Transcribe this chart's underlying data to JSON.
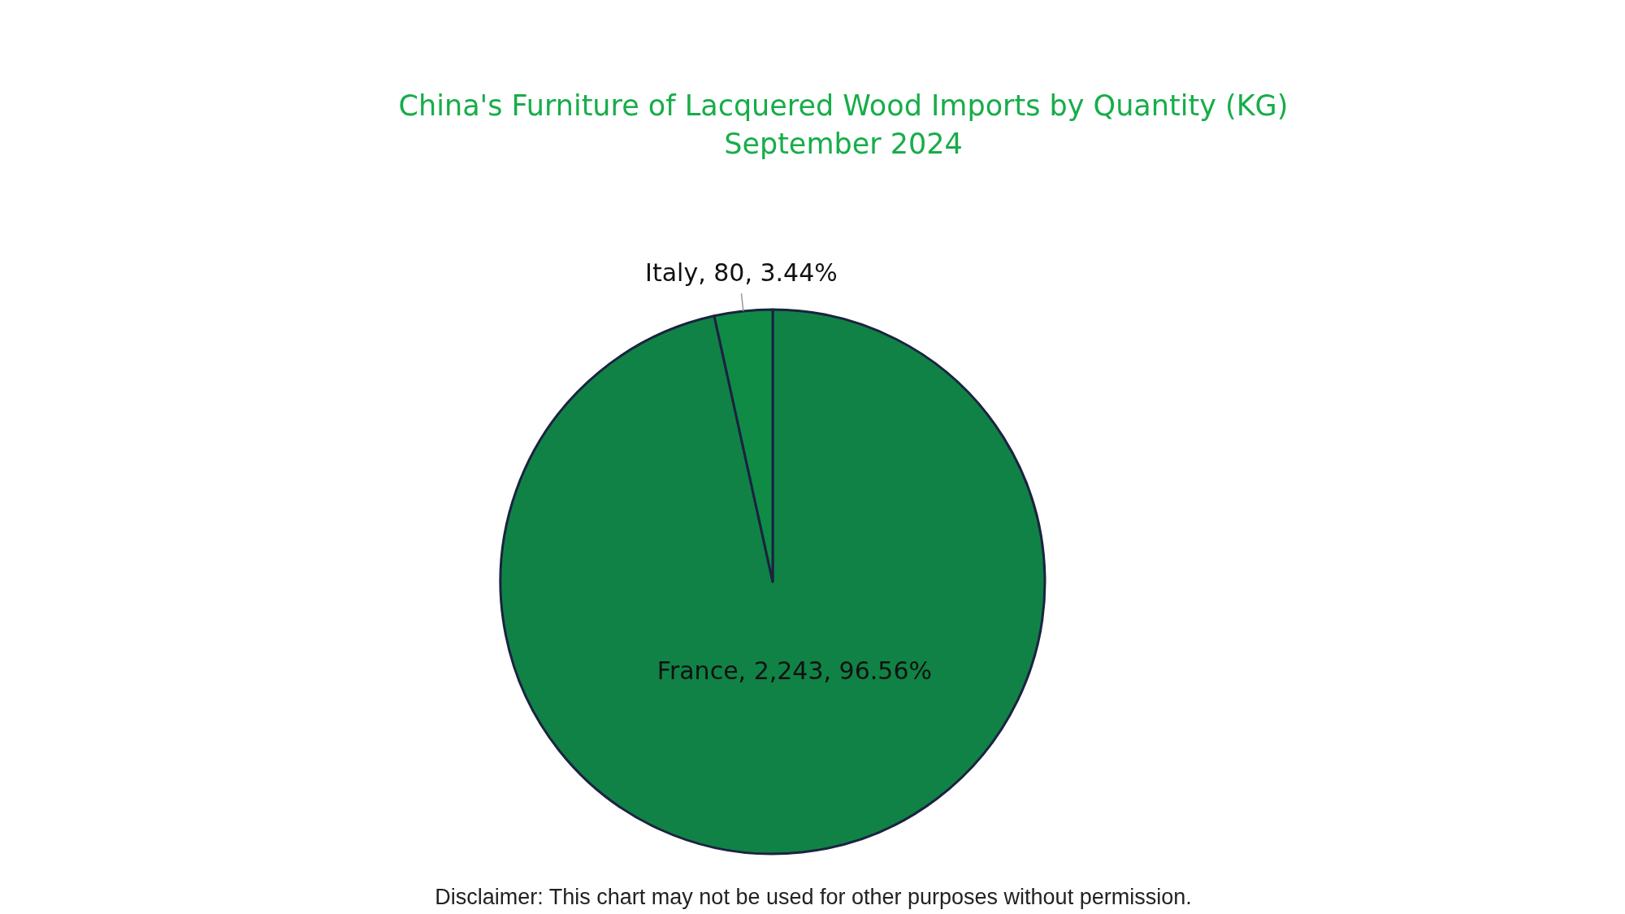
{
  "chart_data": {
    "type": "pie",
    "title": "China's Furniture of Lacquered Wood Imports by Quantity (KG)",
    "subtitle": "September 2024",
    "categories": [
      "France",
      "Italy"
    ],
    "values": [
      2243,
      80
    ],
    "colors": [
      "#108246",
      "#0f8b45"
    ],
    "value_labels": [
      "2,243, 96.56%",
      "80, 3.44%"
    ],
    "annotations": [
      "Disclaimer: This chart may not be used for other purposes without permission."
    ]
  }
}
